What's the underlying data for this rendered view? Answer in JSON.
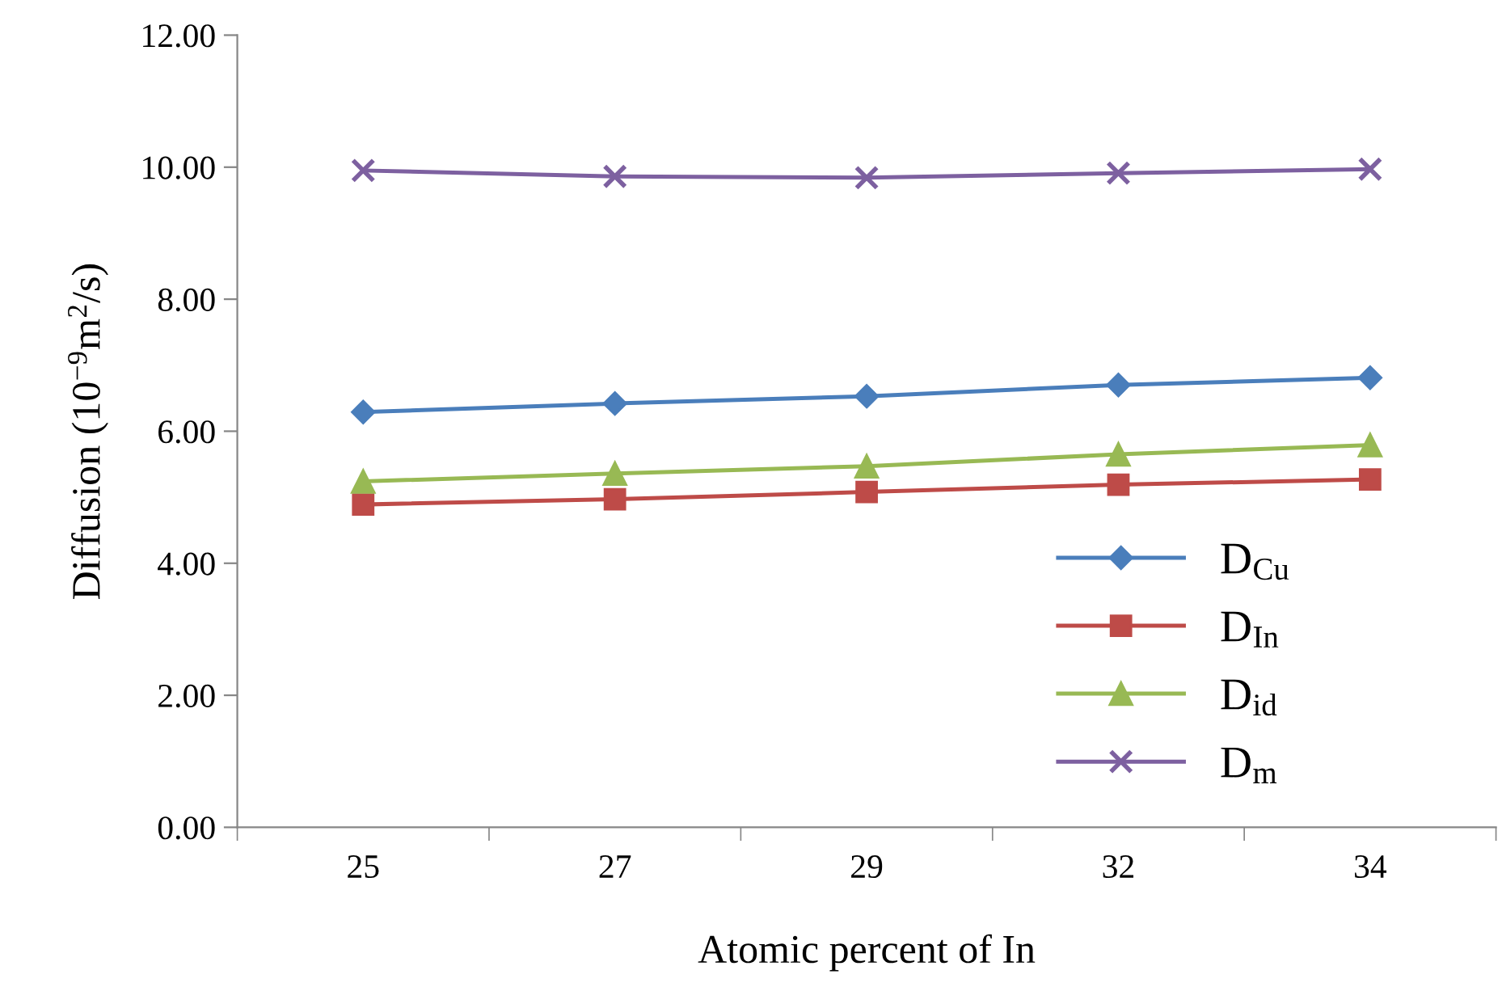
{
  "chart_data": {
    "type": "line",
    "xlabel": "Atomic percent of In",
    "ylabel": "Diffusion (10$^{−9}$m$^{2}$/s)",
    "categories": [
      "25",
      "27",
      "29",
      "32",
      "34"
    ],
    "ylim": [
      0,
      12
    ],
    "yticks": [
      {
        "value": 0,
        "label": "0.00"
      },
      {
        "value": 2,
        "label": "2.00"
      },
      {
        "value": 4,
        "label": "4.00"
      },
      {
        "value": 6,
        "label": "6.00"
      },
      {
        "value": 8,
        "label": "8.00"
      },
      {
        "value": 10,
        "label": "10.00"
      },
      {
        "value": 12,
        "label": "12.00"
      }
    ],
    "grid": false,
    "legend": "bottom right",
    "line_style": "solid",
    "series": [
      {
        "name": "D$_{Cu}$",
        "color": "#4a7ebb",
        "marker": "diamond",
        "values": [
          6.29,
          6.42,
          6.53,
          6.7,
          6.81
        ]
      },
      {
        "name": "D$_{In}$",
        "color": "#be4b48",
        "marker": "square",
        "values": [
          4.89,
          4.97,
          5.08,
          5.19,
          5.27
        ]
      },
      {
        "name": "D$_{id}$",
        "color": "#98b954",
        "marker": "triangle",
        "values": [
          5.24,
          5.36,
          5.47,
          5.65,
          5.79
        ]
      },
      {
        "name": "D$_{m}$",
        "color": "#7d60a0",
        "marker": "cross",
        "values": [
          9.95,
          9.86,
          9.84,
          9.91,
          9.97
        ]
      }
    ]
  }
}
